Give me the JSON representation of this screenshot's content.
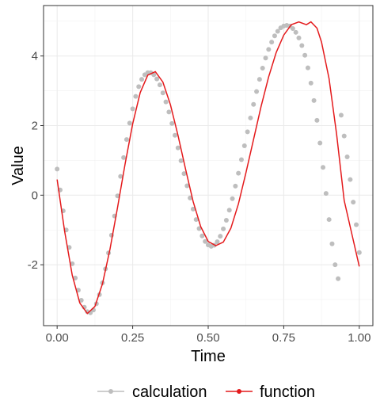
{
  "chart_data": {
    "type": "line",
    "title": "",
    "xlabel": "Time",
    "ylabel": "Value",
    "xlim": [
      -0.045,
      1.045
    ],
    "ylim": [
      -3.75,
      5.45
    ],
    "x_ticks": [
      0.0,
      0.25,
      0.5,
      0.75,
      1.0
    ],
    "x_tick_labels": [
      "0.00",
      "0.25",
      "0.50",
      "0.75",
      "1.00"
    ],
    "y_ticks": [
      -2,
      0,
      2,
      4
    ],
    "y_tick_labels": [
      "-2",
      "0",
      "2",
      "4"
    ],
    "grid": true,
    "legend_position": "bottom",
    "series": [
      {
        "name": "calculation",
        "style": "points",
        "color": "#bebebe",
        "x": [
          0.0,
          0.01,
          0.02,
          0.03,
          0.04,
          0.05,
          0.06,
          0.07,
          0.08,
          0.09,
          0.1,
          0.11,
          0.12,
          0.13,
          0.14,
          0.15,
          0.16,
          0.17,
          0.18,
          0.19,
          0.2,
          0.21,
          0.22,
          0.23,
          0.24,
          0.25,
          0.26,
          0.27,
          0.28,
          0.29,
          0.3,
          0.31,
          0.32,
          0.33,
          0.34,
          0.35,
          0.36,
          0.37,
          0.38,
          0.39,
          0.4,
          0.41,
          0.42,
          0.43,
          0.44,
          0.45,
          0.46,
          0.47,
          0.48,
          0.49,
          0.5,
          0.51,
          0.52,
          0.53,
          0.54,
          0.55,
          0.56,
          0.57,
          0.58,
          0.59,
          0.6,
          0.61,
          0.62,
          0.63,
          0.64,
          0.65,
          0.66,
          0.67,
          0.68,
          0.69,
          0.7,
          0.71,
          0.72,
          0.73,
          0.74,
          0.75,
          0.76,
          0.77,
          0.78,
          0.79,
          0.8,
          0.81,
          0.82,
          0.83,
          0.84,
          0.85,
          0.86,
          0.87,
          0.88,
          0.89,
          0.9,
          0.91,
          0.92,
          0.93,
          0.94,
          0.95,
          0.96,
          0.97,
          0.98,
          0.99,
          1.0
        ],
        "y": [
          0.75,
          0.15,
          -0.45,
          -1.0,
          -1.5,
          -1.97,
          -2.38,
          -2.73,
          -3.02,
          -3.22,
          -3.35,
          -3.38,
          -3.3,
          -3.12,
          -2.86,
          -2.52,
          -2.12,
          -1.66,
          -1.15,
          -0.6,
          -0.02,
          0.54,
          1.08,
          1.6,
          2.07,
          2.48,
          2.84,
          3.12,
          3.33,
          3.46,
          3.52,
          3.52,
          3.46,
          3.34,
          3.17,
          2.94,
          2.68,
          2.39,
          2.06,
          1.72,
          1.36,
          0.99,
          0.62,
          0.27,
          -0.08,
          -0.4,
          -0.7,
          -0.96,
          -1.17,
          -1.33,
          -1.43,
          -1.47,
          -1.44,
          -1.34,
          -1.18,
          -0.97,
          -0.72,
          -0.43,
          -0.1,
          0.26,
          0.63,
          1.02,
          1.42,
          1.82,
          2.22,
          2.61,
          2.98,
          3.33,
          3.65,
          3.94,
          4.19,
          4.4,
          4.58,
          4.71,
          4.81,
          4.86,
          4.88,
          4.86,
          4.79,
          4.68,
          4.52,
          4.3,
          4.02,
          3.66,
          3.22,
          2.72,
          2.15,
          1.5,
          0.8,
          0.05,
          -0.7,
          -1.4,
          -2.0,
          -2.4,
          2.3,
          1.7,
          1.1,
          0.45,
          -0.2,
          -0.85,
          -1.65
        ]
      },
      {
        "name": "function",
        "style": "line",
        "color": "#e41a1c"
      }
    ],
    "function_x": [
      0.0,
      0.025,
      0.05,
      0.075,
      0.1,
      0.125,
      0.15,
      0.175,
      0.2,
      0.225,
      0.25,
      0.275,
      0.3,
      0.325,
      0.35,
      0.375,
      0.4,
      0.425,
      0.45,
      0.475,
      0.5,
      0.525,
      0.55,
      0.575,
      0.6,
      0.625,
      0.65,
      0.675,
      0.7,
      0.725,
      0.75,
      0.775,
      0.8,
      0.825,
      0.84,
      0.86,
      0.875,
      0.9,
      0.925,
      0.95,
      0.975,
      1.0
    ],
    "function_y": [
      0.45,
      -1.05,
      -2.3,
      -3.1,
      -3.4,
      -3.2,
      -2.55,
      -1.55,
      -0.35,
      0.9,
      2.05,
      2.95,
      3.45,
      3.55,
      3.25,
      2.6,
      1.72,
      0.75,
      -0.18,
      -0.9,
      -1.33,
      -1.45,
      -1.35,
      -0.95,
      -0.25,
      0.65,
      1.6,
      2.55,
      3.4,
      4.1,
      4.6,
      4.9,
      4.98,
      4.9,
      4.98,
      4.8,
      4.4,
      3.35,
      1.75,
      -0.15,
      -1.1,
      -2.05
    ]
  }
}
